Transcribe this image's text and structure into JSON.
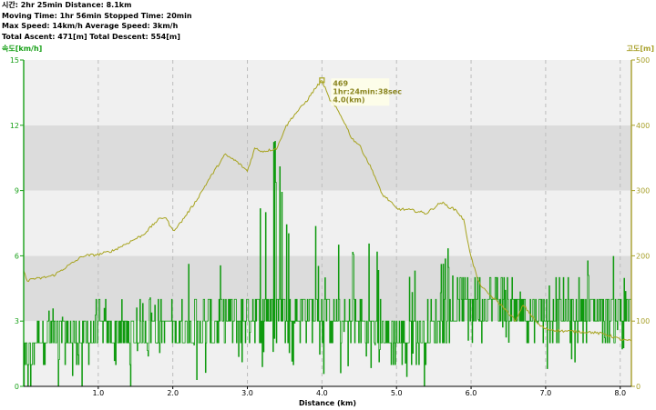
{
  "stats": {
    "line1": "시간: 2hr 25min  Distance: 8.1km",
    "line2": "Moving Time: 1hr 56min  Stopped Time: 20min",
    "line3": "Max Speed: 14km/h  Average Speed: 3km/h",
    "line4": "Total Ascent: 471[m]  Total Descent: 554[m]"
  },
  "chart_data": {
    "type": "line",
    "xlabel": "Distance (km)",
    "ylabel_left": "속도[km/h]",
    "ylabel_right": "고도[m]",
    "xlim": [
      0,
      8.15
    ],
    "ylim_left": [
      0,
      15
    ],
    "ylim_right": [
      0,
      500
    ],
    "x_ticks": [
      "1.0",
      "2.0",
      "3.0",
      "4.0",
      "5.0",
      "6.0",
      "7.0",
      "8.0"
    ],
    "y_left_ticks": [
      "0",
      "3",
      "6",
      "9",
      "12",
      "15"
    ],
    "y_right_ticks": [
      "0",
      "100",
      "200",
      "300",
      "400",
      "500"
    ],
    "grid": true,
    "colors": {
      "speed": "#0f9a0f",
      "elevation": "#a7a31e",
      "left_axis": "#17a017",
      "right_axis": "#a8a02a"
    },
    "series": [
      {
        "name": "속도[km/h]",
        "axis": "left",
        "x": [
          0.0,
          0.2,
          0.4,
          0.6,
          0.8,
          1.0,
          1.2,
          1.4,
          1.6,
          1.8,
          2.0,
          2.2,
          2.4,
          2.6,
          2.8,
          3.0,
          3.2,
          3.4,
          3.6,
          3.8,
          4.0,
          4.2,
          4.4,
          4.6,
          4.8,
          5.0,
          5.2,
          5.4,
          5.6,
          5.8,
          6.0,
          6.2,
          6.4,
          6.6,
          6.8,
          7.0,
          7.2,
          7.4,
          7.6,
          7.8,
          8.0,
          8.15
        ],
        "y_mean": [
          0.5,
          2.5,
          2.3,
          2.4,
          2.2,
          2.6,
          2.5,
          2.4,
          2.6,
          2.6,
          2.7,
          2.7,
          2.8,
          2.8,
          3.1,
          3.3,
          3.4,
          3.4,
          3.5,
          3.3,
          3.3,
          3.2,
          3.0,
          2.8,
          2.5,
          2.2,
          2.3,
          2.6,
          2.9,
          3.5,
          4.1,
          4.0,
          4.0,
          3.6,
          3.3,
          3.5,
          3.5,
          3.5,
          3.5,
          3.5,
          3.5,
          3.5
        ],
        "y_max": [
          15,
          4,
          4,
          4,
          4,
          4,
          4,
          4,
          4,
          5,
          5,
          7,
          5,
          7,
          7,
          8,
          10,
          12,
          9,
          9,
          7,
          7,
          7,
          7,
          6,
          5,
          6,
          6,
          6,
          7,
          6,
          5,
          5,
          7,
          4,
          5,
          5,
          6,
          6,
          6,
          6,
          5
        ]
      },
      {
        "name": "고도[m]",
        "axis": "right",
        "x": [
          0.0,
          0.03,
          0.06,
          0.1,
          0.2,
          0.4,
          0.6,
          0.8,
          1.0,
          1.2,
          1.4,
          1.6,
          1.8,
          1.9,
          2.0,
          2.1,
          2.3,
          2.5,
          2.7,
          2.85,
          3.0,
          3.1,
          3.2,
          3.3,
          3.4,
          3.5,
          3.6,
          3.7,
          3.8,
          3.9,
          4.0,
          4.1,
          4.2,
          4.3,
          4.4,
          4.5,
          4.6,
          4.7,
          4.8,
          4.9,
          5.0,
          5.2,
          5.4,
          5.6,
          5.7,
          5.8,
          5.9,
          6.0,
          6.1,
          6.2,
          6.4,
          6.6,
          6.7,
          6.8,
          6.9,
          7.0,
          7.2,
          7.4,
          7.6,
          7.8,
          8.0,
          8.1,
          8.15
        ],
        "y": [
          175,
          168,
          160,
          165,
          165,
          170,
          185,
          200,
          202,
          208,
          220,
          232,
          255,
          260,
          238,
          250,
          282,
          320,
          355,
          345,
          330,
          365,
          360,
          362,
          365,
          395,
          412,
          425,
          438,
          455,
          469,
          440,
          425,
          405,
          380,
          370,
          348,
          325,
          295,
          285,
          272,
          270,
          265,
          282,
          275,
          270,
          255,
          198,
          160,
          145,
          125,
          100,
          125,
          110,
          95,
          88,
          85,
          84,
          83,
          80,
          72,
          70,
          70
        ]
      }
    ],
    "annotation": {
      "elevation": "469",
      "time": "1hr:24min:38sec",
      "distance": "4.0(km)",
      "x": 4.0,
      "y": 469
    }
  }
}
